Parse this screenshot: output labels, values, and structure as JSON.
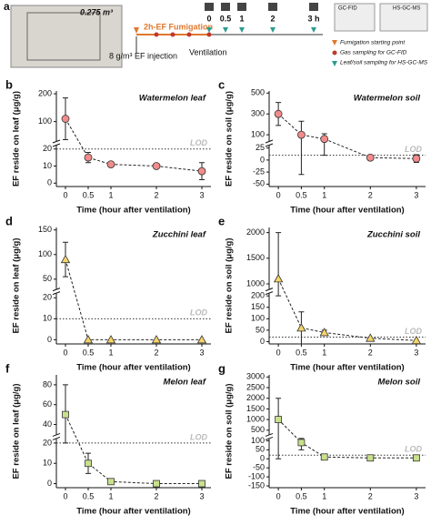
{
  "diagram": {
    "chamber_area": "0.275 m³",
    "fumigation": "2h-EF Fumigation",
    "injection": "8 g/m³ EF injection",
    "ventilation": "Ventilation",
    "timeline": [
      "0",
      "0.5",
      "1",
      "2",
      "3 h"
    ],
    "legend": [
      "Fumigation starting point",
      "Gas sampling for GC-FID",
      "Leaf/soil sampling for HS-GC-MS"
    ],
    "instruments": [
      "GC-FID",
      "HS-GC-MS"
    ]
  },
  "chart_data": [
    {
      "type": "line",
      "panel": "b",
      "title": "Watermelon leaf",
      "ylabel": "EF reside on leaf (μg/g)",
      "xlabel": "Time (hour after ventilation)",
      "lod_label": "LOD",
      "lod": 20,
      "marker": "circle",
      "color": "#f28b8b",
      "x": [
        0,
        0.5,
        1,
        2,
        3
      ],
      "values": [
        110,
        15,
        11,
        10,
        7
      ],
      "errors": [
        75,
        3,
        0,
        0,
        5
      ],
      "xlim": [
        -0.2,
        3.2
      ],
      "xticks": [
        0,
        0.5,
        1,
        2,
        3
      ],
      "segments": [
        {
          "ylim": [
            -2,
            22
          ],
          "yticks": [
            0,
            10,
            20
          ]
        },
        {
          "ylim": [
            30,
            210
          ],
          "yticks": [
            100,
            200
          ]
        }
      ]
    },
    {
      "type": "line",
      "panel": "c",
      "title": "Watermelon soil",
      "ylabel": "EF reside on soil (μg/g)",
      "xlabel": "Time (hour after ventilation)",
      "lod_label": "LOD",
      "lod": 10,
      "marker": "circle",
      "color": "#f28b8b",
      "x": [
        0,
        0.5,
        1,
        2,
        3
      ],
      "values": [
        300,
        100,
        60,
        5,
        3
      ],
      "errors": [
        110,
        130,
        50,
        5,
        8
      ],
      "xlim": [
        -0.2,
        3.2
      ],
      "xticks": [
        0,
        0.5,
        1,
        2,
        3
      ],
      "segments": [
        {
          "ylim": [
            -55,
            30
          ],
          "yticks": [
            -50,
            -25,
            0,
            25
          ]
        },
        {
          "ylim": [
            40,
            520
          ],
          "yticks": [
            100,
            300,
            500
          ]
        }
      ]
    },
    {
      "type": "line",
      "panel": "d",
      "title": "Zucchini leaf",
      "ylabel": "EF reside on leaf (μg/g)",
      "xlabel": "Time (hour after ventilation)",
      "lod_label": "LOD",
      "lod": 10,
      "marker": "triangle",
      "color": "#f5d46a",
      "x": [
        0,
        0.5,
        1,
        2,
        3
      ],
      "values": [
        90,
        0,
        0,
        0,
        0
      ],
      "errors": [
        35,
        0,
        0,
        0,
        0
      ],
      "xlim": [
        -0.2,
        3.2
      ],
      "xticks": [
        0,
        0.5,
        1,
        2,
        3
      ],
      "segments": [
        {
          "ylim": [
            -2,
            22
          ],
          "yticks": [
            0,
            10,
            20
          ]
        },
        {
          "ylim": [
            30,
            155
          ],
          "yticks": [
            50,
            100,
            150
          ]
        }
      ]
    },
    {
      "type": "line",
      "panel": "e",
      "title": "Zucchini soil",
      "ylabel": "EF reside on soil (μg/g)",
      "xlabel": "Time (hour after ventilation)",
      "lod_label": "LOD",
      "lod": 20,
      "marker": "triangle",
      "color": "#f5d46a",
      "x": [
        0,
        0.5,
        1,
        2,
        3
      ],
      "values": [
        1100,
        60,
        40,
        15,
        5
      ],
      "errors": [
        900,
        70,
        10,
        0,
        0
      ],
      "xlim": [
        -0.2,
        3.2
      ],
      "xticks": [
        0,
        0.5,
        1,
        2,
        3
      ],
      "segments": [
        {
          "ylim": [
            -10,
            210
          ],
          "yticks": [
            0,
            50,
            100,
            150,
            200
          ]
        },
        {
          "ylim": [
            900,
            2100
          ],
          "yticks": [
            1000,
            1500,
            2000
          ]
        }
      ]
    },
    {
      "type": "line",
      "panel": "f",
      "title": "Melon leaf",
      "ylabel": "EF reside on leaf (μg/g)",
      "xlabel": "Time (hour after ventilation)",
      "lod_label": "LOD",
      "lod": 20,
      "marker": "square",
      "color": "#c9e08c",
      "x": [
        0,
        0.5,
        1,
        2,
        3
      ],
      "values": [
        50,
        10,
        1,
        0,
        0
      ],
      "errors": [
        30,
        5,
        0,
        0,
        0
      ],
      "xlim": [
        -0.2,
        3.2
      ],
      "xticks": [
        0,
        0.5,
        1,
        2,
        3
      ],
      "segments": [
        {
          "ylim": [
            -2,
            22
          ],
          "yticks": [
            0,
            10,
            20
          ]
        },
        {
          "ylim": [
            30,
            90
          ],
          "yticks": [
            40,
            60,
            80
          ]
        }
      ]
    },
    {
      "type": "line",
      "panel": "g",
      "title": "Melon soil",
      "ylabel": "EF reside on soil (μg/g)",
      "xlabel": "Time (hour after ventilation)",
      "lod_label": "LOD",
      "lod": 20,
      "marker": "square",
      "color": "#c9e08c",
      "x": [
        0,
        0.5,
        1,
        2,
        3
      ],
      "values": [
        1000,
        90,
        10,
        5,
        5
      ],
      "errors": [
        1000,
        40,
        0,
        0,
        0
      ],
      "xlim": [
        -0.2,
        3.2
      ],
      "xticks": [
        0,
        0.5,
        1,
        2,
        3
      ],
      "segments": [
        {
          "ylim": [
            -160,
            110
          ],
          "yticks": [
            -150,
            -100,
            -50,
            0,
            50,
            100
          ]
        },
        {
          "ylim": [
            300,
            3100
          ],
          "yticks": [
            500,
            1000,
            1500,
            2000,
            2500,
            3000
          ]
        }
      ]
    }
  ]
}
